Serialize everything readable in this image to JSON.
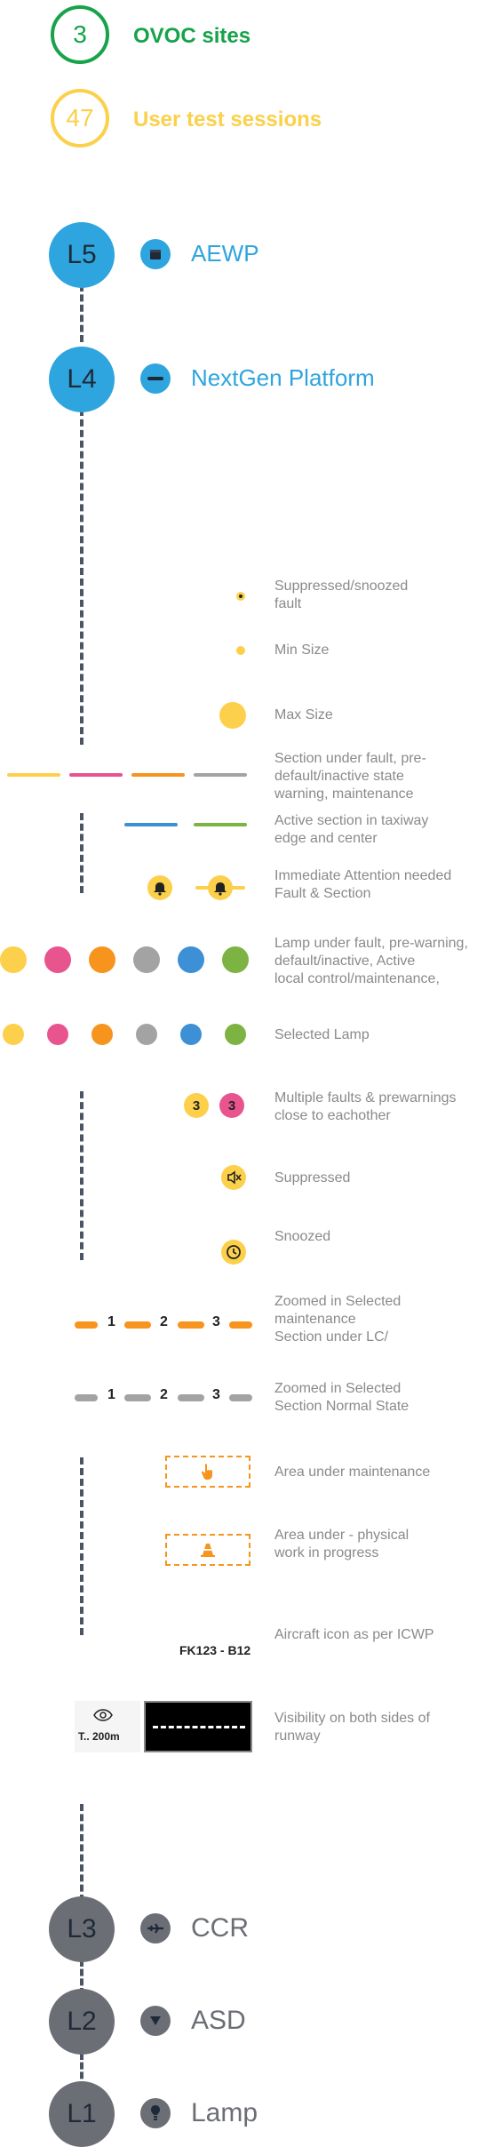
{
  "stats": [
    {
      "value": "3",
      "label": "OVOC sites",
      "color": "#16a34a"
    },
    {
      "value": "47",
      "label": "User test sessions",
      "color": "#fbd04a"
    }
  ],
  "levels": [
    {
      "code": "L5",
      "label": "AEWP",
      "icon": "box-icon"
    },
    {
      "code": "L4",
      "label": "NextGen Platform",
      "icon": "minus-icon"
    },
    {
      "code": "L3",
      "label": "CCR",
      "icon": "plane-icon"
    },
    {
      "code": "L2",
      "label": "ASD",
      "icon": "triangle-down-icon"
    },
    {
      "code": "L1",
      "label": "Lamp",
      "icon": "bulb-icon"
    }
  ],
  "colors": {
    "blue": "#2ea5de",
    "grey_level": "#6b6e75",
    "yellow": "#fcd04a",
    "pink": "#e8548e",
    "orange": "#f7941d",
    "grey": "#a3a3a3",
    "lamp_blue": "#3d8fd6",
    "green": "#7cb342"
  },
  "legend": {
    "suppressed_snoozed_fault": "Suppressed/snoozed\nfault",
    "min_size": "Min Size",
    "max_size": "Max Size",
    "section_under_fault": "Section under fault, pre-\ndefault/inactive state\nwarning, maintenance",
    "active_section": "Active section in taxiway\nedge and center",
    "immediate_attention": "Immediate Attention needed\nFault & Section",
    "lamp_under_fault": "Lamp under fault, pre-warning,\ndefault/inactive, Active\nlocal control/maintenance,",
    "selected_lamp": "Selected Lamp",
    "multiple_faults": "Multiple faults & prewarnings\nclose to eachother",
    "suppressed": "Suppressed",
    "snoozed": "Snoozed",
    "zoomed_maintenance": "Zoomed in Selected\nmaintenance\nSection under LC/",
    "zoomed_normal": "Zoomed in Selected\nSection Normal State",
    "area_maintenance": "Area under maintenance",
    "area_physical_work": "Area under - physical\nwork in progress",
    "aircraft_icon": "Aircraft icon as per ICWP",
    "visibility": "Visibility on both sides of\nrunway"
  },
  "multi_fault_badges": [
    "3",
    "3"
  ],
  "segment_numbers": [
    "1",
    "2",
    "3"
  ],
  "aircraft_label": "FK123 - B12",
  "visibility_label": "T.. 200m"
}
